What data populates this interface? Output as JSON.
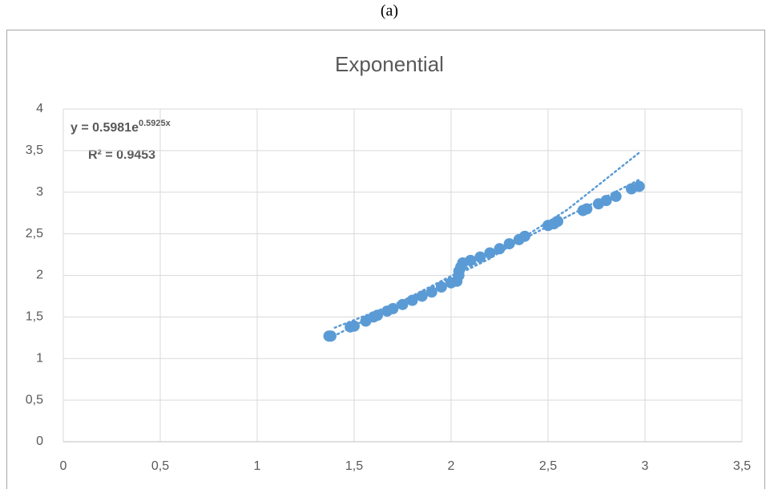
{
  "caption": "(a)",
  "chart_data": {
    "type": "scatter",
    "title": "Exponential",
    "equation": {
      "text": "y = 0.5981e",
      "exponent": "0.5925x"
    },
    "r_squared": "R² = 0.9453",
    "xlim": [
      0,
      3.5
    ],
    "ylim": [
      0,
      4
    ],
    "xticks": [
      0,
      {
        "value": 0.5,
        "label": "0,5"
      },
      1,
      {
        "value": 1.5,
        "label": "1,5"
      },
      2,
      {
        "value": 2.5,
        "label": "2,5"
      },
      3,
      {
        "value": 3.5,
        "label": "3,5"
      }
    ],
    "yticks": [
      0,
      {
        "value": 0.5,
        "label": "0,5"
      },
      1,
      {
        "value": 1.5,
        "label": "1,5"
      },
      2,
      {
        "value": 2.5,
        "label": "2,5"
      },
      3,
      {
        "value": 3.5,
        "label": "3,5"
      },
      4
    ],
    "grid": true,
    "series": [
      {
        "color": "#5b9bd5",
        "x": [
          1.37,
          1.38,
          1.48,
          1.5,
          1.56,
          1.6,
          1.62,
          1.67,
          1.7,
          1.75,
          1.8,
          1.85,
          1.9,
          1.95,
          2.0,
          2.03,
          2.04,
          2.04,
          2.05,
          2.06,
          2.1,
          2.15,
          2.2,
          2.25,
          2.3,
          2.35,
          2.38,
          2.5,
          2.53,
          2.55,
          2.68,
          2.7,
          2.76,
          2.8,
          2.85,
          2.93,
          2.97
        ],
        "values": [
          1.27,
          1.27,
          1.38,
          1.39,
          1.45,
          1.5,
          1.52,
          1.57,
          1.6,
          1.65,
          1.7,
          1.75,
          1.8,
          1.86,
          1.91,
          1.93,
          2.0,
          2.05,
          2.1,
          2.15,
          2.18,
          2.22,
          2.27,
          2.32,
          2.38,
          2.43,
          2.47,
          2.6,
          2.62,
          2.65,
          2.78,
          2.8,
          2.86,
          2.9,
          2.95,
          3.04,
          3.07
        ]
      }
    ],
    "trendlines": [
      {
        "color": "#5b9bd5",
        "x": [
          1.4,
          1.8,
          2.2,
          2.6,
          2.97
        ],
        "values": [
          1.371,
          1.738,
          2.202,
          2.791,
          3.475
        ]
      },
      {
        "color": "#5b9bd5",
        "x": [
          1.37,
          2.97
        ],
        "values": [
          1.24,
          3.15
        ]
      }
    ]
  }
}
